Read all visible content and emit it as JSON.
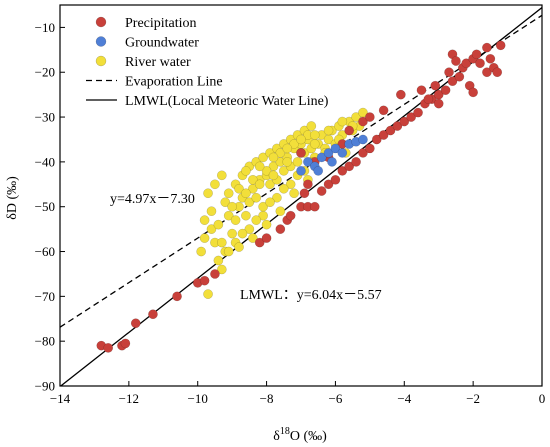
{
  "chart_data": {
    "type": "scatter",
    "xlabel": "δ18O (‰)",
    "xlabel_base": "δ",
    "xlabel_sup": "18",
    "xlabel_rest": "O (‰)",
    "ylabel": "δD (‰)",
    "xlim": [
      -14,
      0
    ],
    "ylim": [
      -90,
      -5
    ],
    "xticks": [
      -14,
      -12,
      -10,
      -8,
      -6,
      -4,
      -2,
      0
    ],
    "yticks": [
      -90,
      -80,
      -70,
      -60,
      -50,
      -40,
      -30,
      -20,
      -10
    ],
    "grid": false,
    "legend_position": "top-left",
    "series": [
      {
        "name": "Precipitation",
        "color": "#c8403a",
        "points": [
          [
            -12.8,
            -81
          ],
          [
            -12.6,
            -81.5
          ],
          [
            -12.2,
            -81
          ],
          [
            -12.1,
            -80.5
          ],
          [
            -11.8,
            -76
          ],
          [
            -11.3,
            -74
          ],
          [
            -10.6,
            -70
          ],
          [
            -10.0,
            -67
          ],
          [
            -9.8,
            -66.5
          ],
          [
            -9.5,
            -65
          ],
          [
            -8.2,
            -58
          ],
          [
            -8.0,
            -57
          ],
          [
            -7.6,
            -55
          ],
          [
            -7.4,
            -53
          ],
          [
            -7.3,
            -52
          ],
          [
            -7.0,
            -50
          ],
          [
            -6.8,
            -50
          ],
          [
            -6.6,
            -50
          ],
          [
            -6.9,
            -47
          ],
          [
            -6.4,
            -46.5
          ],
          [
            -6.2,
            -45
          ],
          [
            -6.0,
            -44
          ],
          [
            -5.8,
            -42
          ],
          [
            -5.6,
            -41
          ],
          [
            -5.4,
            -40
          ],
          [
            -5.2,
            -38
          ],
          [
            -5.0,
            -37
          ],
          [
            -4.8,
            -35
          ],
          [
            -4.6,
            -34
          ],
          [
            -4.4,
            -33
          ],
          [
            -4.2,
            -32
          ],
          [
            -4.0,
            -31
          ],
          [
            -3.8,
            -30
          ],
          [
            -3.6,
            -29
          ],
          [
            -3.4,
            -27
          ],
          [
            -3.2,
            -26
          ],
          [
            -3.0,
            -25
          ],
          [
            -2.8,
            -24
          ],
          [
            -2.6,
            -22
          ],
          [
            -2.4,
            -21
          ],
          [
            -2.3,
            -19
          ],
          [
            -2.2,
            -18
          ],
          [
            -2.0,
            -17
          ],
          [
            -1.9,
            -16
          ],
          [
            -1.8,
            -18
          ],
          [
            -1.6,
            -20
          ],
          [
            -1.4,
            -19
          ],
          [
            -1.3,
            -20
          ],
          [
            -1.2,
            -14
          ],
          [
            -1.6,
            -14.5
          ],
          [
            -2.6,
            -16
          ],
          [
            -2.5,
            -17.5
          ],
          [
            -3.1,
            -23
          ],
          [
            -3.3,
            -26
          ],
          [
            -4.1,
            -25
          ],
          [
            -4.6,
            -28.5
          ],
          [
            -5.2,
            -31
          ],
          [
            -5.6,
            -33
          ],
          [
            -5.8,
            -36
          ],
          [
            -6.2,
            -39
          ],
          [
            -6.6,
            -40
          ],
          [
            -7.0,
            -38
          ],
          [
            -6.8,
            -45
          ],
          [
            -5.0,
            -30
          ],
          [
            -3.0,
            -27
          ],
          [
            -2.1,
            -23
          ],
          [
            -2.0,
            -24.5
          ],
          [
            -1.5,
            -17
          ],
          [
            -2.7,
            -20
          ],
          [
            -3.5,
            -24
          ]
        ]
      },
      {
        "name": "Groundwater",
        "color": "#4f7fd6",
        "points": [
          [
            -7.0,
            -42
          ],
          [
            -6.8,
            -40
          ],
          [
            -6.6,
            -41
          ],
          [
            -6.4,
            -39
          ],
          [
            -6.2,
            -38
          ],
          [
            -6.0,
            -37
          ],
          [
            -5.8,
            -38
          ],
          [
            -5.6,
            -36
          ],
          [
            -5.4,
            -35.5
          ],
          [
            -5.2,
            -35
          ],
          [
            -6.5,
            -42
          ],
          [
            -6.1,
            -40
          ]
        ]
      },
      {
        "name": "River water",
        "color": "#f2df3a",
        "points": [
          [
            -9.9,
            -60
          ],
          [
            -9.8,
            -57
          ],
          [
            -9.6,
            -55
          ],
          [
            -9.7,
            -69.5
          ],
          [
            -9.5,
            -58
          ],
          [
            -9.4,
            -62
          ],
          [
            -9.2,
            -60
          ],
          [
            -9.3,
            -64
          ],
          [
            -9.0,
            -56
          ],
          [
            -9.1,
            -52
          ],
          [
            -8.9,
            -53
          ],
          [
            -8.8,
            -50
          ],
          [
            -8.7,
            -48
          ],
          [
            -8.6,
            -52
          ],
          [
            -8.5,
            -49
          ],
          [
            -8.4,
            -46
          ],
          [
            -8.3,
            -48
          ],
          [
            -8.2,
            -44
          ],
          [
            -8.1,
            -50
          ],
          [
            -8.0,
            -43
          ],
          [
            -7.9,
            -45
          ],
          [
            -7.8,
            -41
          ],
          [
            -7.7,
            -44
          ],
          [
            -7.6,
            -40
          ],
          [
            -7.5,
            -42
          ],
          [
            -7.4,
            -39
          ],
          [
            -7.3,
            -41
          ],
          [
            -7.2,
            -37
          ],
          [
            -7.1,
            -40
          ],
          [
            -7.0,
            -36
          ],
          [
            -6.9,
            -38
          ],
          [
            -6.8,
            -35
          ],
          [
            -6.7,
            -37
          ],
          [
            -6.6,
            -39
          ],
          [
            -6.5,
            -36
          ],
          [
            -6.4,
            -34
          ],
          [
            -6.3,
            -37
          ],
          [
            -6.2,
            -35
          ],
          [
            -6.1,
            -33
          ],
          [
            -6.0,
            -36
          ],
          [
            -5.9,
            -32
          ],
          [
            -5.8,
            -34
          ],
          [
            -5.7,
            -38
          ],
          [
            -5.6,
            -31
          ],
          [
            -5.5,
            -33
          ],
          [
            -5.4,
            -30
          ],
          [
            -5.3,
            -32
          ],
          [
            -5.2,
            -29
          ],
          [
            -9.7,
            -47
          ],
          [
            -9.5,
            -45
          ],
          [
            -9.3,
            -43
          ],
          [
            -9.1,
            -47
          ],
          [
            -8.9,
            -45
          ],
          [
            -8.7,
            -43
          ],
          [
            -8.5,
            -41
          ],
          [
            -8.3,
            -40
          ],
          [
            -8.1,
            -39
          ],
          [
            -7.9,
            -38
          ],
          [
            -7.7,
            -37
          ],
          [
            -7.5,
            -36
          ],
          [
            -7.3,
            -35
          ],
          [
            -7.1,
            -34
          ],
          [
            -6.9,
            -33
          ],
          [
            -6.7,
            -32
          ],
          [
            -9.6,
            -51
          ],
          [
            -9.2,
            -49
          ],
          [
            -8.8,
            -46
          ],
          [
            -8.4,
            -44
          ],
          [
            -8.0,
            -42
          ],
          [
            -7.6,
            -38
          ],
          [
            -7.2,
            -36
          ],
          [
            -6.8,
            -34
          ],
          [
            -9.8,
            -53
          ],
          [
            -9.4,
            -54
          ],
          [
            -9.0,
            -50
          ],
          [
            -8.6,
            -47
          ],
          [
            -8.2,
            -45
          ],
          [
            -7.8,
            -43
          ],
          [
            -7.4,
            -40
          ],
          [
            -7.0,
            -38
          ],
          [
            -6.6,
            -36
          ],
          [
            -6.2,
            -33
          ],
          [
            -5.8,
            -31
          ],
          [
            -8.9,
            -58
          ],
          [
            -8.5,
            -55
          ],
          [
            -8.1,
            -52
          ],
          [
            -7.7,
            -48
          ],
          [
            -7.3,
            -45
          ],
          [
            -6.9,
            -42
          ],
          [
            -9.3,
            -58
          ],
          [
            -8.7,
            -56
          ],
          [
            -8.3,
            -53
          ],
          [
            -7.9,
            -49
          ],
          [
            -7.5,
            -46
          ],
          [
            -7.1,
            -43
          ],
          [
            -6.7,
            -40
          ],
          [
            -6.3,
            -38
          ],
          [
            -5.9,
            -35
          ],
          [
            -5.5,
            -32
          ],
          [
            -8.6,
            -42
          ],
          [
            -8.2,
            -41
          ],
          [
            -7.8,
            -39
          ],
          [
            -7.4,
            -37
          ],
          [
            -7.0,
            -35
          ],
          [
            -6.6,
            -34
          ],
          [
            -9.1,
            -60
          ],
          [
            -8.8,
            -59
          ],
          [
            -8.4,
            -57
          ],
          [
            -8.0,
            -54
          ],
          [
            -7.6,
            -51
          ],
          [
            -7.2,
            -47
          ],
          [
            -6.8,
            -44
          ]
        ]
      }
    ],
    "lines": [
      {
        "name": "Evaporation Line",
        "style": "dashed",
        "slope": 4.97,
        "intercept": -7.3,
        "equation": "y=4.97x－7.30"
      },
      {
        "name": "LMWL(Local Meteoric Water Line)",
        "style": "solid",
        "slope": 6.04,
        "intercept": -5.57,
        "equation": "LMWL：y=6.04x－5.57"
      }
    ]
  }
}
